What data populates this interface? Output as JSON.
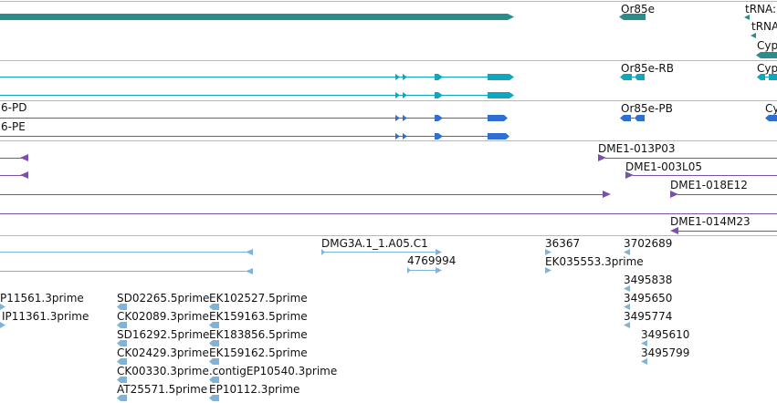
{
  "colors": {
    "gene": "#2c8b8b",
    "mrna": "#11a6bd",
    "protein": "#2f6fd1",
    "clone": "#7a52a9",
    "est": "#7fb4d8",
    "separator": "#b9b9b9"
  },
  "tracks": {
    "gene": {
      "labels": [
        "Or85e",
        "tRNA:",
        "tRNA",
        "Cyp"
      ]
    },
    "mrna": {
      "labels": [
        "Or85e-RB",
        "Cyp"
      ]
    },
    "protein": {
      "labels": [
        "6-PD",
        "6-PE",
        "Or85e-PB",
        "Cy"
      ]
    },
    "clones": {
      "labels": [
        "DME1-013P03",
        "DME1-003L05",
        "DME1-018E12",
        "DME1-014M23"
      ]
    },
    "est": {
      "labels": [
        "DMG3A.1_1.A05.C1",
        "4769994",
        "36367",
        "EK035553.3prime",
        "3702689",
        "3495838",
        "3495650",
        "3495774",
        "3495610",
        "3495799",
        "P11561.3prime",
        "IP11361.3prime",
        "SD02265.5prime",
        "EK102527.5prime",
        "CK02089.3prime",
        "EK159163.5prime",
        "SD16292.5prime",
        "EK183856.5prime",
        "CK02429.3prime",
        "EK159162.5prime",
        "CK00330.3prime.contigEP10540.3prime",
        "AT25571.5prime",
        "EP10112.3prime"
      ]
    }
  }
}
